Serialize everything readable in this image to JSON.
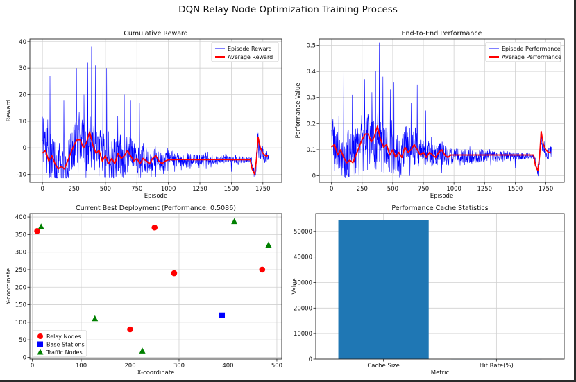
{
  "page": {
    "suptitle": "DQN Relay Node Optimization Training Process"
  },
  "colors": {
    "episode": "#0000ff",
    "average": "#ff0000",
    "relay": "#ff0000",
    "base": "#0000ff",
    "traffic": "#008000",
    "bar": "#1f77b4",
    "grid": "#d0d0d0"
  },
  "chart_data": [
    {
      "type": "line",
      "title": "Cumulative Reward",
      "xlabel": "Episode",
      "ylabel": "Reward",
      "xlim": [
        -100,
        1900
      ],
      "ylim": [
        -13,
        41
      ],
      "xticks": [
        0,
        250,
        500,
        750,
        1000,
        1250,
        1500,
        1750
      ],
      "yticks": [
        -10,
        0,
        10,
        20,
        30,
        40
      ],
      "legend": {
        "position": "top-right",
        "entries": [
          "Episode Reward",
          "Average Reward"
        ]
      },
      "series": [
        {
          "name": "Episode Reward",
          "keypoints": [
            [
              0,
              3
            ],
            [
              50,
              -2
            ],
            [
              100,
              -7
            ],
            [
              150,
              -8
            ],
            [
              200,
              -3
            ],
            [
              250,
              1
            ],
            [
              300,
              4
            ],
            [
              350,
              -1
            ],
            [
              380,
              3
            ],
            [
              400,
              0
            ],
            [
              450,
              -2
            ],
            [
              500,
              -4
            ],
            [
              550,
              -6
            ],
            [
              600,
              -1
            ],
            [
              650,
              -3
            ],
            [
              700,
              -2
            ],
            [
              750,
              -5
            ],
            [
              800,
              -4
            ],
            [
              850,
              -6
            ],
            [
              900,
              -3
            ],
            [
              950,
              -6
            ],
            [
              1000,
              -4
            ],
            [
              1100,
              -4.5
            ],
            [
              1200,
              -4.5
            ],
            [
              1300,
              -4.5
            ],
            [
              1400,
              -4.5
            ],
            [
              1500,
              -4.5
            ],
            [
              1600,
              -4.5
            ],
            [
              1660,
              -4.5
            ],
            [
              1670,
              -8
            ],
            [
              1690,
              -10
            ],
            [
              1710,
              3
            ],
            [
              1730,
              -1
            ],
            [
              1760,
              -3
            ],
            [
              1790,
              -3
            ]
          ],
          "amp": [
            [
              0,
              9
            ],
            [
              600,
              9
            ],
            [
              700,
              6
            ],
            [
              1000,
              3
            ],
            [
              1650,
              1
            ],
            [
              1670,
              1
            ],
            [
              1700,
              4
            ],
            [
              1800,
              2
            ]
          ],
          "spikes": [
            [
              60,
              27
            ],
            [
              170,
              18
            ],
            [
              270,
              30
            ],
            [
              330,
              20
            ],
            [
              360,
              32
            ],
            [
              390,
              38
            ],
            [
              420,
              31
            ],
            [
              480,
              24
            ],
            [
              510,
              30
            ],
            [
              650,
              20
            ],
            [
              700,
              18
            ],
            [
              770,
              17
            ],
            [
              900,
              10
            ]
          ],
          "dips": [
            [
              640,
              -12
            ],
            [
              900,
              -11
            ],
            [
              1050,
              -9
            ],
            [
              1300,
              -8
            ],
            [
              1500,
              -9
            ]
          ]
        },
        {
          "name": "Average Reward",
          "points": [
            [
              0,
              -2
            ],
            [
              25,
              -1
            ],
            [
              50,
              -5
            ],
            [
              75,
              -3
            ],
            [
              100,
              -6
            ],
            [
              125,
              -8
            ],
            [
              150,
              -7
            ],
            [
              175,
              -8
            ],
            [
              200,
              -5
            ],
            [
              225,
              -2
            ],
            [
              250,
              1
            ],
            [
              275,
              3
            ],
            [
              300,
              3
            ],
            [
              325,
              0
            ],
            [
              350,
              2
            ],
            [
              375,
              6
            ],
            [
              400,
              1
            ],
            [
              425,
              -2
            ],
            [
              450,
              -1
            ],
            [
              475,
              -5
            ],
            [
              500,
              -3
            ],
            [
              525,
              -6
            ],
            [
              550,
              -4
            ],
            [
              575,
              -6
            ],
            [
              600,
              -2
            ],
            [
              625,
              -4
            ],
            [
              650,
              -3
            ],
            [
              675,
              -1
            ],
            [
              700,
              -3
            ],
            [
              725,
              -5
            ],
            [
              750,
              -4
            ],
            [
              775,
              -6
            ],
            [
              800,
              -4
            ],
            [
              825,
              -5
            ],
            [
              850,
              -6
            ],
            [
              875,
              -4
            ],
            [
              900,
              -3
            ],
            [
              925,
              -5
            ],
            [
              950,
              -6
            ],
            [
              975,
              -5
            ],
            [
              1000,
              -4.5
            ],
            [
              1050,
              -4.5
            ],
            [
              1100,
              -4.4
            ],
            [
              1200,
              -4.5
            ],
            [
              1300,
              -4.5
            ],
            [
              1400,
              -4.4
            ],
            [
              1500,
              -4.5
            ],
            [
              1600,
              -4.5
            ],
            [
              1650,
              -4.5
            ],
            [
              1665,
              -8
            ],
            [
              1685,
              -10
            ],
            [
              1700,
              -4
            ],
            [
              1712,
              4
            ],
            [
              1730,
              0
            ],
            [
              1750,
              -2
            ],
            [
              1770,
              -3
            ],
            [
              1790,
              -3
            ]
          ]
        }
      ]
    },
    {
      "type": "line",
      "title": "End-to-End Performance",
      "xlabel": "Episode",
      "ylabel": "Performance Value",
      "xlim": [
        -100,
        1900
      ],
      "ylim": [
        -0.025,
        0.525
      ],
      "xticks": [
        0,
        250,
        500,
        750,
        1000,
        1250,
        1500,
        1750
      ],
      "yticks": [
        0.0,
        0.1,
        0.2,
        0.3,
        0.4,
        0.5
      ],
      "legend": {
        "position": "top-right",
        "entries": [
          "Episode Performance",
          "Average Performance"
        ]
      },
      "series": [
        {
          "name": "Episode Performance",
          "keypoints": [
            [
              0,
              0.14
            ],
            [
              50,
              0.11
            ],
            [
              100,
              0.06
            ],
            [
              150,
              0.05
            ],
            [
              200,
              0.1
            ],
            [
              250,
              0.13
            ],
            [
              300,
              0.16
            ],
            [
              350,
              0.12
            ],
            [
              380,
              0.15
            ],
            [
              400,
              0.13
            ],
            [
              450,
              0.11
            ],
            [
              500,
              0.09
            ],
            [
              550,
              0.07
            ],
            [
              600,
              0.12
            ],
            [
              650,
              0.1
            ],
            [
              700,
              0.11
            ],
            [
              750,
              0.08
            ],
            [
              800,
              0.09
            ],
            [
              850,
              0.07
            ],
            [
              900,
              0.1
            ],
            [
              950,
              0.07
            ],
            [
              1000,
              0.08
            ],
            [
              1100,
              0.075
            ],
            [
              1200,
              0.075
            ],
            [
              1300,
              0.075
            ],
            [
              1400,
              0.075
            ],
            [
              1500,
              0.075
            ],
            [
              1600,
              0.075
            ],
            [
              1660,
              0.075
            ],
            [
              1670,
              0.04
            ],
            [
              1690,
              0.02
            ],
            [
              1710,
              0.15
            ],
            [
              1730,
              0.11
            ],
            [
              1760,
              0.09
            ],
            [
              1790,
              0.09
            ]
          ],
          "amp": [
            [
              0,
              0.09
            ],
            [
              600,
              0.09
            ],
            [
              700,
              0.06
            ],
            [
              1000,
              0.03
            ],
            [
              1650,
              0.01
            ],
            [
              1670,
              0.01
            ],
            [
              1700,
              0.04
            ],
            [
              1800,
              0.02
            ]
          ],
          "spikes": [
            [
              60,
              0.23
            ],
            [
              100,
              0.4
            ],
            [
              170,
              0.31
            ],
            [
              270,
              0.37
            ],
            [
              330,
              0.32
            ],
            [
              360,
              0.4
            ],
            [
              390,
              0.51
            ],
            [
              420,
              0.38
            ],
            [
              480,
              0.33
            ],
            [
              510,
              0.36
            ],
            [
              650,
              0.28
            ],
            [
              700,
              0.35
            ],
            [
              770,
              0.25
            ],
            [
              900,
              0.2
            ]
          ],
          "dips": [
            [
              640,
              0.0
            ],
            [
              900,
              0.01
            ],
            [
              1050,
              0.04
            ],
            [
              1300,
              0.04
            ],
            [
              1500,
              0.03
            ]
          ]
        },
        {
          "name": "Average Performance",
          "points": [
            [
              0,
              0.11
            ],
            [
              25,
              0.12
            ],
            [
              50,
              0.08
            ],
            [
              75,
              0.1
            ],
            [
              100,
              0.07
            ],
            [
              125,
              0.05
            ],
            [
              150,
              0.06
            ],
            [
              175,
              0.05
            ],
            [
              200,
              0.08
            ],
            [
              225,
              0.11
            ],
            [
              250,
              0.14
            ],
            [
              275,
              0.16
            ],
            [
              300,
              0.16
            ],
            [
              325,
              0.13
            ],
            [
              350,
              0.15
            ],
            [
              375,
              0.19
            ],
            [
              400,
              0.14
            ],
            [
              425,
              0.11
            ],
            [
              450,
              0.12
            ],
            [
              475,
              0.08
            ],
            [
              500,
              0.1
            ],
            [
              525,
              0.07
            ],
            [
              550,
              0.09
            ],
            [
              575,
              0.07
            ],
            [
              600,
              0.11
            ],
            [
              625,
              0.09
            ],
            [
              650,
              0.1
            ],
            [
              675,
              0.12
            ],
            [
              700,
              0.1
            ],
            [
              725,
              0.08
            ],
            [
              750,
              0.09
            ],
            [
              775,
              0.07
            ],
            [
              800,
              0.09
            ],
            [
              825,
              0.08
            ],
            [
              850,
              0.07
            ],
            [
              875,
              0.09
            ],
            [
              900,
              0.1
            ],
            [
              925,
              0.08
            ],
            [
              950,
              0.07
            ],
            [
              975,
              0.08
            ],
            [
              1000,
              0.08
            ],
            [
              1100,
              0.08
            ],
            [
              1200,
              0.08
            ],
            [
              1300,
              0.08
            ],
            [
              1400,
              0.08
            ],
            [
              1500,
              0.08
            ],
            [
              1600,
              0.08
            ],
            [
              1650,
              0.08
            ],
            [
              1665,
              0.04
            ],
            [
              1685,
              0.02
            ],
            [
              1700,
              0.08
            ],
            [
              1712,
              0.17
            ],
            [
              1730,
              0.12
            ],
            [
              1750,
              0.1
            ],
            [
              1770,
              0.09
            ],
            [
              1790,
              0.09
            ]
          ]
        }
      ]
    },
    {
      "type": "scatter",
      "title": "Current Best Deployment (Performance: 0.5086)",
      "xlabel": "X-coordinate",
      "ylabel": "Y-coordinate",
      "xlim": [
        -5,
        510
      ],
      "ylim": [
        -5,
        410
      ],
      "xticks": [
        0,
        100,
        200,
        300,
        400,
        500
      ],
      "yticks": [
        0,
        50,
        100,
        150,
        200,
        250,
        300,
        350,
        400
      ],
      "legend": {
        "position": "bottom-left",
        "entries": [
          "Relay Nodes",
          "Base Stations",
          "Traffic Nodes"
        ]
      },
      "series": [
        {
          "name": "Relay Nodes",
          "marker": "circle",
          "points": [
            [
              10,
              360
            ],
            [
              250,
              370
            ],
            [
              290,
              240
            ],
            [
              470,
              250
            ],
            [
              200,
              80
            ]
          ]
        },
        {
          "name": "Base Stations",
          "marker": "square",
          "points": [
            [
              388,
              120
            ]
          ]
        },
        {
          "name": "Traffic Nodes",
          "marker": "triangle",
          "points": [
            [
              18,
              372
            ],
            [
              413,
              387
            ],
            [
              483,
              320
            ],
            [
              128,
              110
            ],
            [
              225,
              18
            ]
          ]
        }
      ]
    },
    {
      "type": "bar",
      "title": "Performance Cache Statistics",
      "xlabel": "Metric",
      "ylabel": "Value",
      "categories": [
        "Cache Size",
        "Hit Rate(%)"
      ],
      "values": [
        54300,
        4
      ],
      "ylim": [
        0,
        57000
      ],
      "yticks": [
        0,
        10000,
        20000,
        30000,
        40000,
        50000
      ]
    }
  ]
}
